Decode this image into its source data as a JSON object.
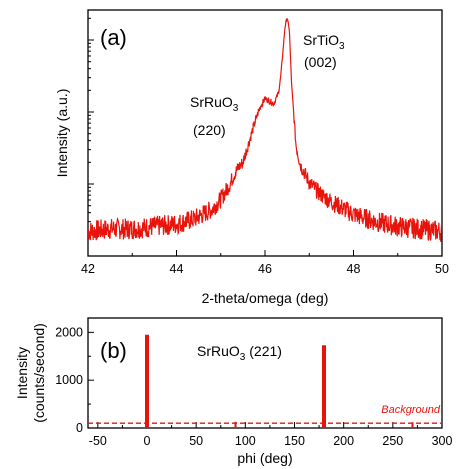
{
  "colors": {
    "series": "#e8140c",
    "axis": "#000000"
  },
  "chart_data": [
    {
      "type": "line",
      "panel_label": "(a)",
      "xlabel": "2-theta/omega (deg)",
      "ylabel": "Intensity (a.u.)",
      "xlim": [
        42,
        50
      ],
      "xticks": [
        "42",
        "44",
        "46",
        "48",
        "50"
      ],
      "y_scale": "log",
      "y_tick_labels_shown": false,
      "annotations": [
        {
          "lines": [
            "SrRuO",
            "3",
            "(220)"
          ],
          "x": 46.0
        },
        {
          "lines": [
            "SrTiO",
            "3",
            "(002)"
          ],
          "x": 46.5
        }
      ],
      "series": [
        {
          "values_description": "relative log intensity",
          "x": [
            42.0,
            42.5,
            43.0,
            43.5,
            44.0,
            44.4,
            44.8,
            45.0,
            45.2,
            45.3,
            45.4,
            45.5,
            45.6,
            45.8,
            45.9,
            46.0,
            46.1,
            46.2,
            46.3,
            46.35,
            46.4,
            46.45,
            46.5,
            46.55,
            46.6,
            46.7,
            46.8,
            47.0,
            47.2,
            47.5,
            48.0,
            48.5,
            49.0,
            49.5,
            50.0
          ],
          "y": [
            0.1,
            0.11,
            0.11,
            0.12,
            0.13,
            0.15,
            0.19,
            0.23,
            0.29,
            0.33,
            0.36,
            0.38,
            0.44,
            0.56,
            0.61,
            0.64,
            0.63,
            0.62,
            0.66,
            0.72,
            0.82,
            0.93,
            0.97,
            0.92,
            0.7,
            0.45,
            0.37,
            0.3,
            0.26,
            0.22,
            0.17,
            0.14,
            0.12,
            0.11,
            0.1
          ]
        }
      ]
    },
    {
      "type": "bar",
      "panel_label": "(b)",
      "xlabel": "phi (deg)",
      "ylabel": [
        "Intensity",
        "(counts/second)"
      ],
      "xlim": [
        -60,
        300
      ],
      "ylim": [
        0,
        2300
      ],
      "xticks": [
        "-50",
        "0",
        "50",
        "100",
        "150",
        "200",
        "250",
        "300"
      ],
      "yticks": [
        "0",
        "1000",
        "2000"
      ],
      "annotation": {
        "text": "SrRuO",
        "sub": "3",
        "suffix": " (221)"
      },
      "background_label": "Background",
      "background_level": 100,
      "peaks": [
        {
          "x": 0,
          "y": 1950
        },
        {
          "x": 180,
          "y": 1730
        },
        {
          "x": 90,
          "y": 130
        },
        {
          "x": 270,
          "y": 120
        }
      ]
    }
  ]
}
